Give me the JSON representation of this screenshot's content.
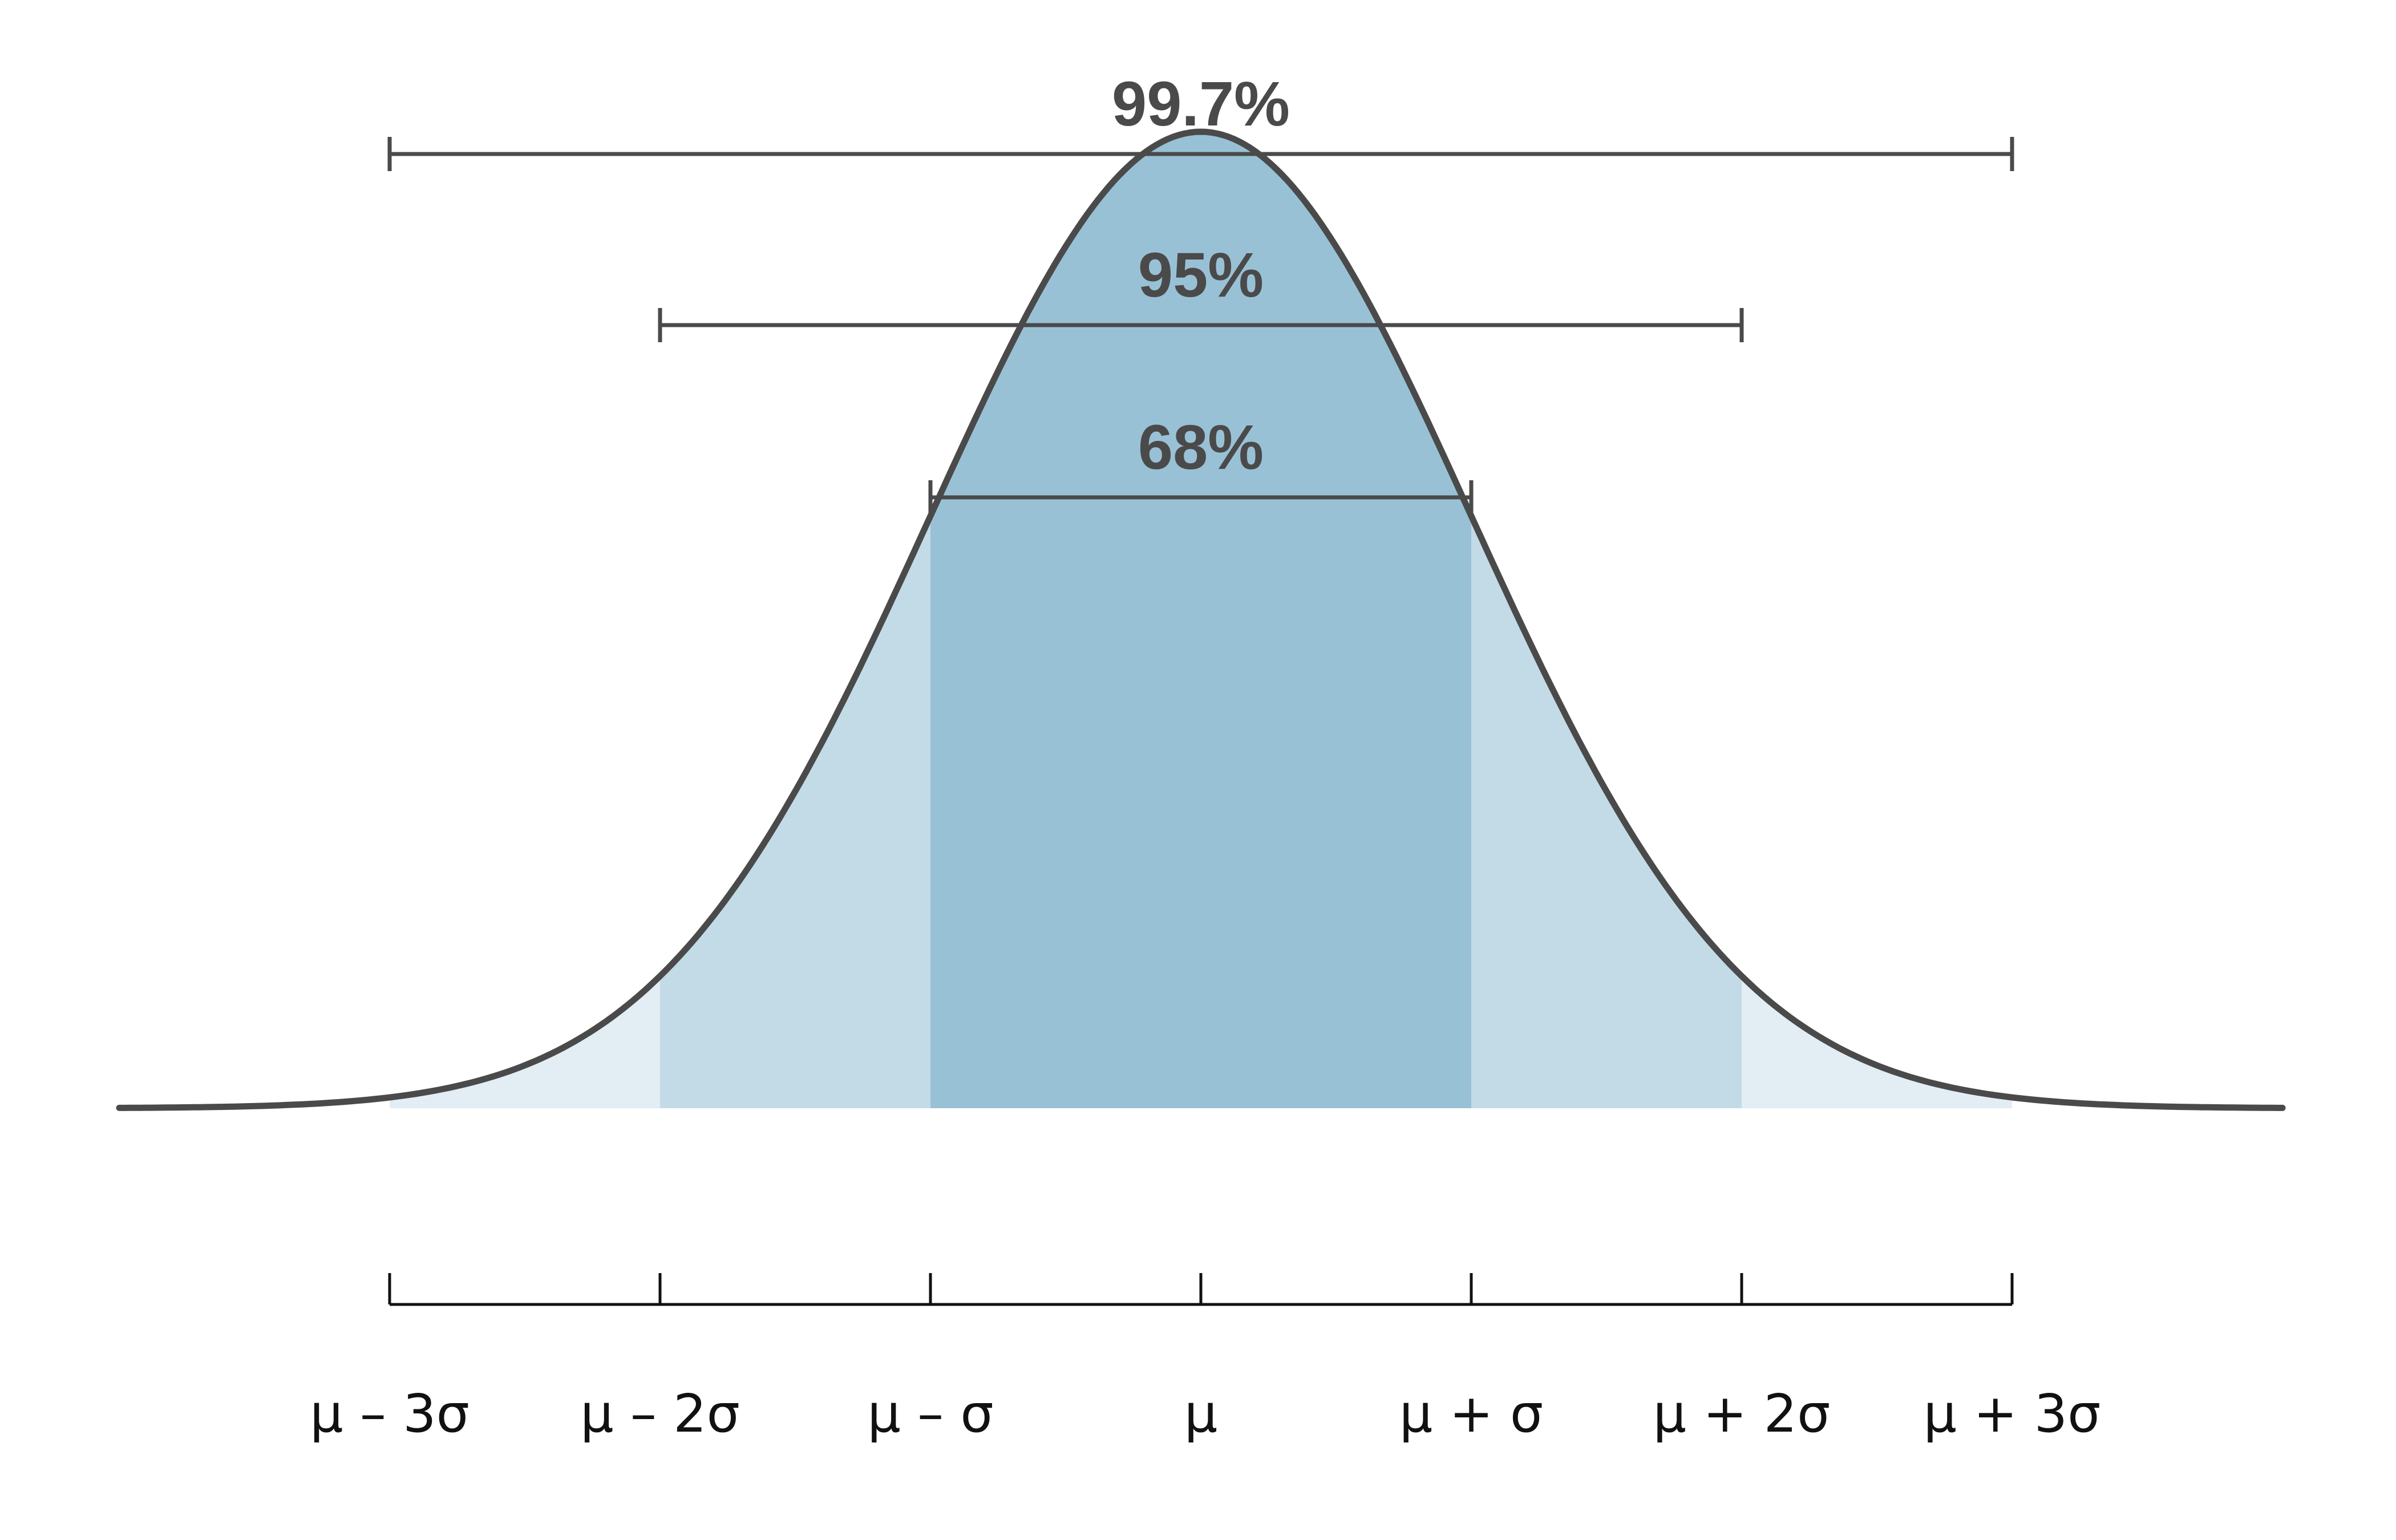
{
  "chart_data": {
    "type": "area",
    "title": "",
    "xlabel": "",
    "ylabel": "",
    "distribution": "normal",
    "xlim_sigma": [
      -4,
      4
    ],
    "ticks": [
      {
        "sigma": -3,
        "label": "μ – 3σ"
      },
      {
        "sigma": -2,
        "label": "μ – 2σ"
      },
      {
        "sigma": -1,
        "label": "μ – σ"
      },
      {
        "sigma": 0,
        "label": "μ"
      },
      {
        "sigma": 1,
        "label": "μ + σ"
      },
      {
        "sigma": 2,
        "label": "μ + 2σ"
      },
      {
        "sigma": 3,
        "label": "μ + 3σ"
      }
    ],
    "intervals": [
      {
        "k": 3,
        "label": "99.7%"
      },
      {
        "k": 2,
        "label": "95%"
      },
      {
        "k": 1,
        "label": "68%"
      }
    ],
    "band_colors": {
      "within_1_sigma": "#99c1d6",
      "within_2_sigma": "#c3dbe6",
      "within_3_sigma": "#e2eef4"
    },
    "curve_color": "#4a4a4a",
    "grid": false,
    "legend": "none"
  }
}
